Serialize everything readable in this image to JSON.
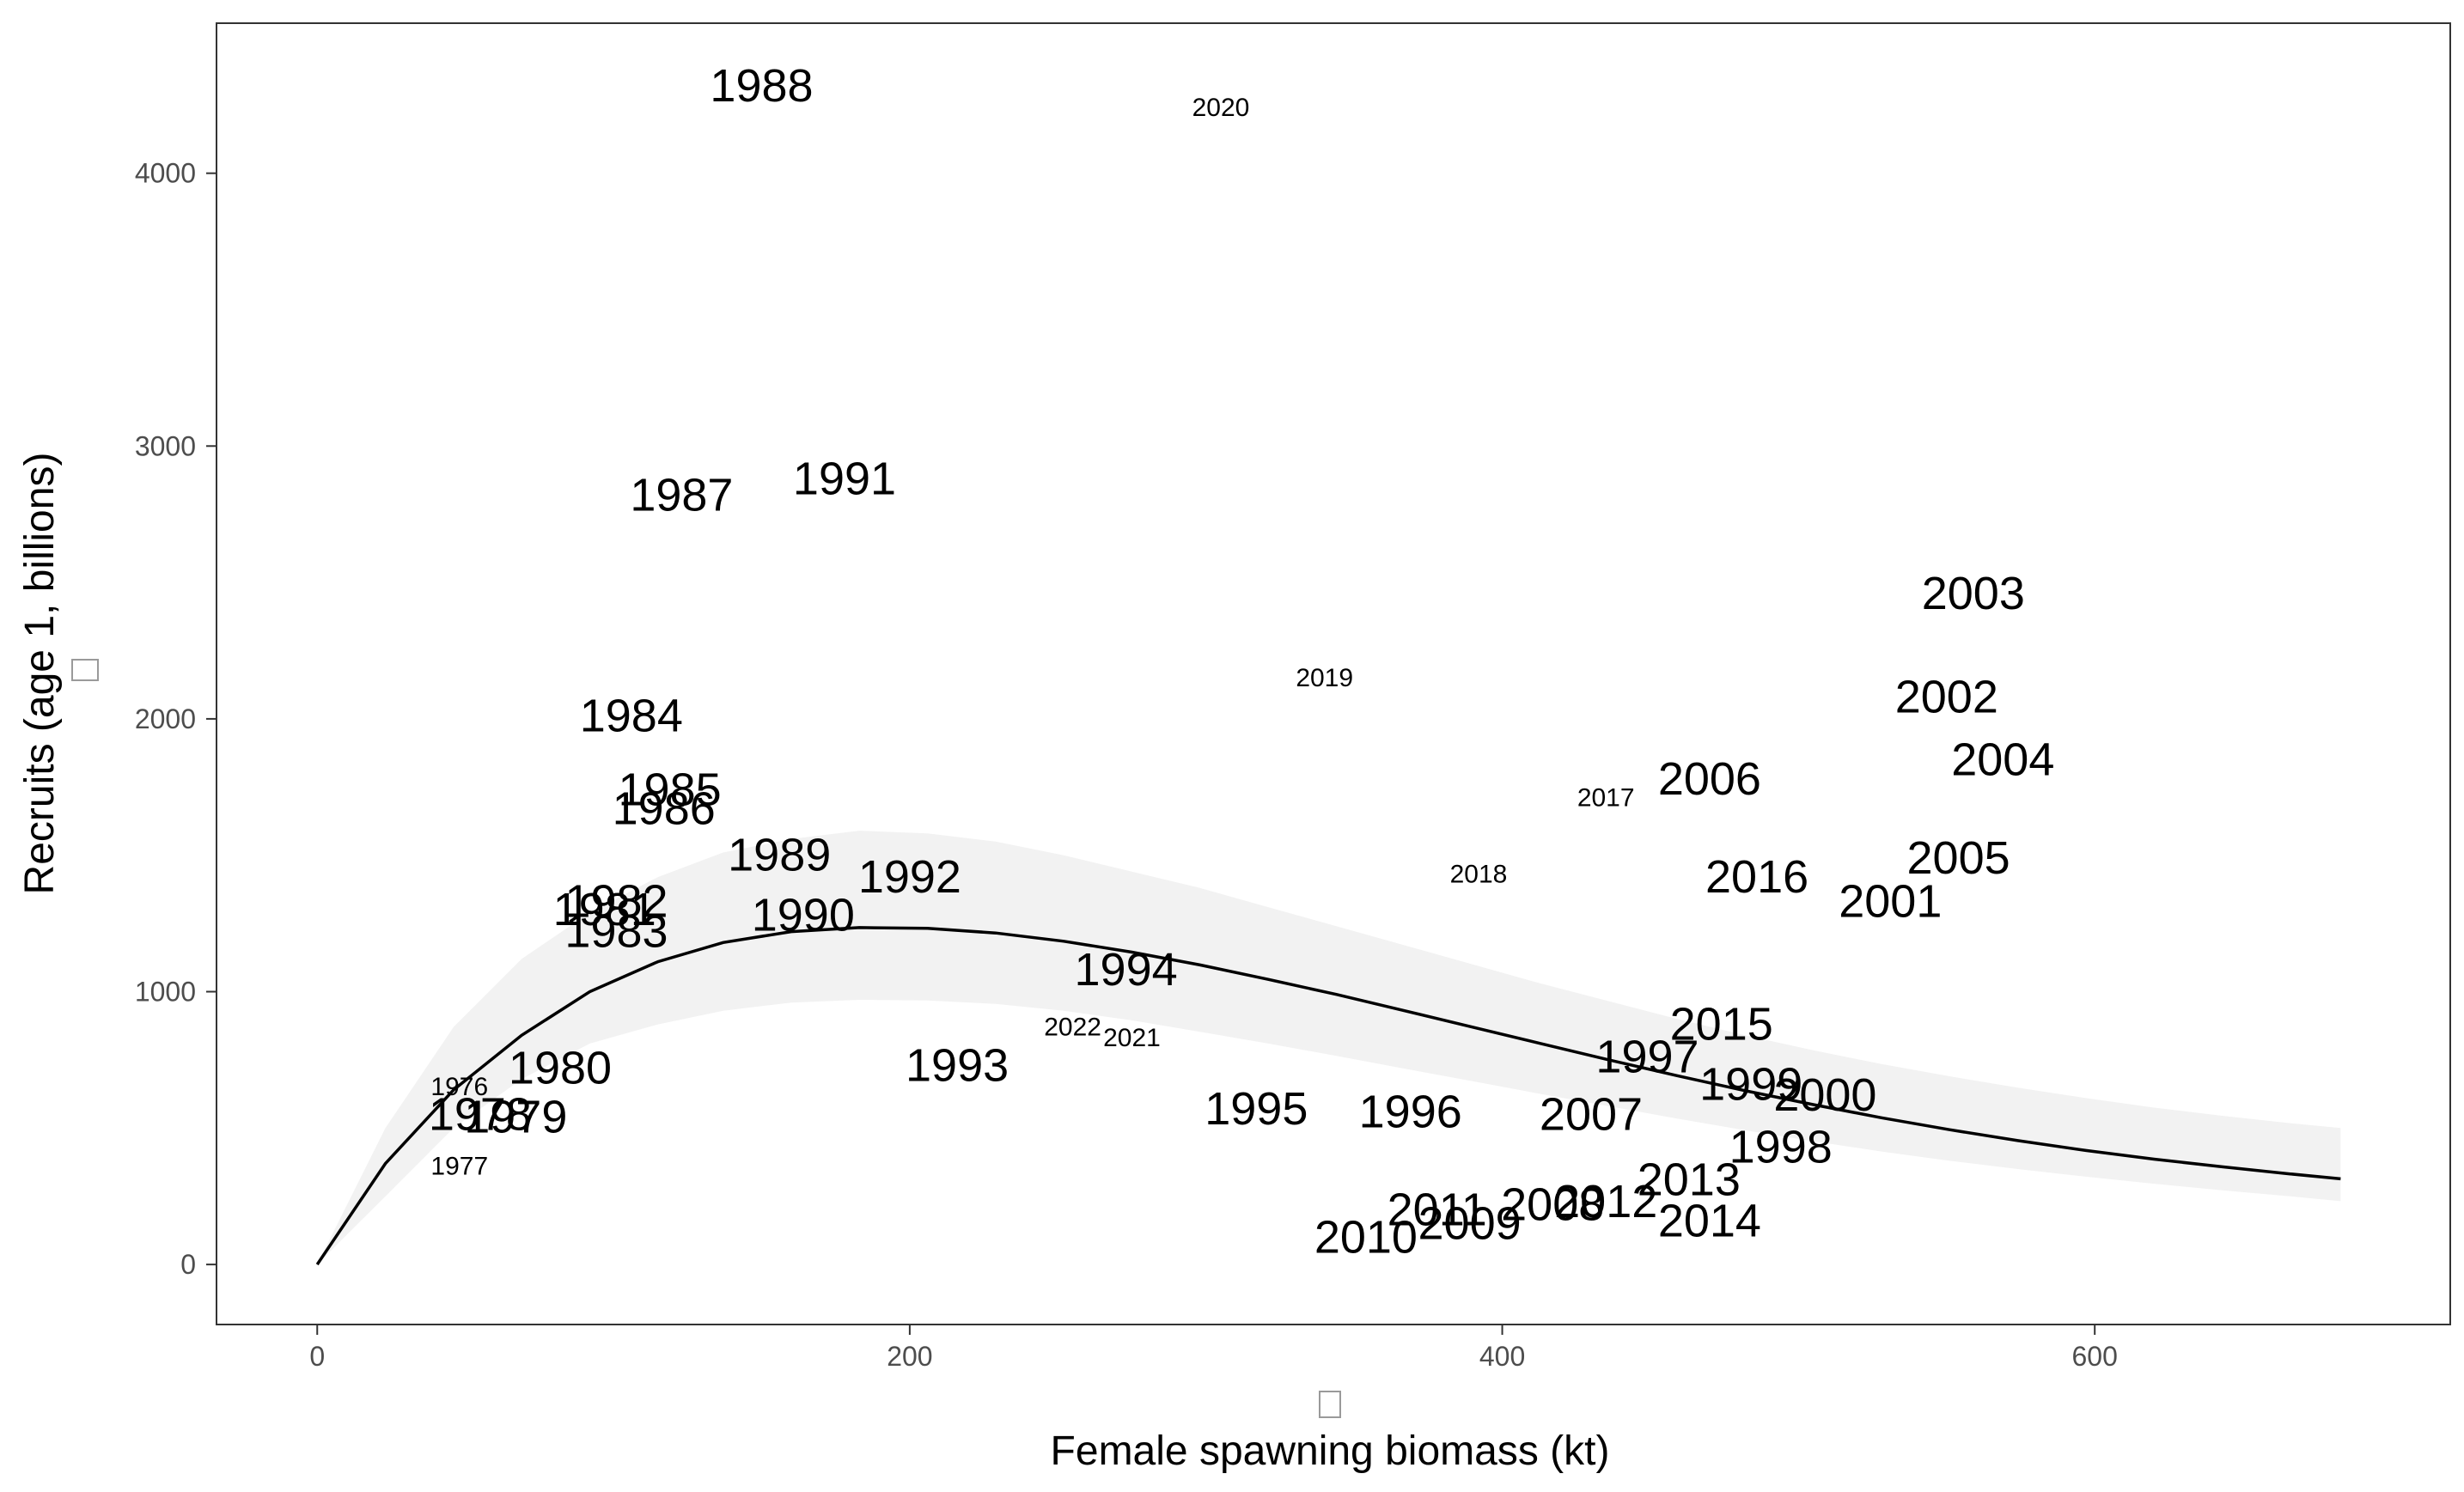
{
  "chart_data": {
    "type": "scatter",
    "xlabel": "Female spawning biomass (kt)",
    "ylabel": "Recruits (age 1, billions)",
    "xlim": [
      -34,
      720
    ],
    "ylim": [
      -220,
      4550
    ],
    "x_ticks": [
      0,
      200,
      400,
      600
    ],
    "y_ticks": [
      0,
      1000,
      2000,
      3000,
      4000
    ],
    "grid": false,
    "legend": "none",
    "colors": {
      "curve": "#000000",
      "band": "#f2f2f2",
      "panel_border": "#333333",
      "tick_text": "#4d4d4d",
      "text": "#000000"
    },
    "points": [
      {
        "label": "1976",
        "x": 48,
        "y": 650,
        "size": "small"
      },
      {
        "label": "1977",
        "x": 48,
        "y": 360,
        "size": "small"
      },
      {
        "label": "1978",
        "x": 55,
        "y": 550,
        "size": "large"
      },
      {
        "label": "1979",
        "x": 67,
        "y": 540,
        "size": "large"
      },
      {
        "label": "1980",
        "x": 82,
        "y": 720,
        "size": "large"
      },
      {
        "label": "1981",
        "x": 97,
        "y": 1300,
        "size": "large"
      },
      {
        "label": "1982",
        "x": 101,
        "y": 1330,
        "size": "large"
      },
      {
        "label": "1983",
        "x": 101,
        "y": 1220,
        "size": "large"
      },
      {
        "label": "1984",
        "x": 106,
        "y": 2010,
        "size": "large"
      },
      {
        "label": "1985",
        "x": 119,
        "y": 1740,
        "size": "large"
      },
      {
        "label": "1986",
        "x": 117,
        "y": 1670,
        "size": "large"
      },
      {
        "label": "1987",
        "x": 123,
        "y": 2820,
        "size": "large"
      },
      {
        "label": "1988",
        "x": 150,
        "y": 4320,
        "size": "large"
      },
      {
        "label": "1989",
        "x": 156,
        "y": 1500,
        "size": "large"
      },
      {
        "label": "1990",
        "x": 164,
        "y": 1280,
        "size": "large"
      },
      {
        "label": "1991",
        "x": 178,
        "y": 2880,
        "size": "large"
      },
      {
        "label": "1992",
        "x": 200,
        "y": 1420,
        "size": "large"
      },
      {
        "label": "1993",
        "x": 216,
        "y": 730,
        "size": "large"
      },
      {
        "label": "1994",
        "x": 273,
        "y": 1080,
        "size": "large"
      },
      {
        "label": "1995",
        "x": 317,
        "y": 570,
        "size": "large"
      },
      {
        "label": "1996",
        "x": 369,
        "y": 560,
        "size": "large"
      },
      {
        "label": "1997",
        "x": 449,
        "y": 760,
        "size": "large"
      },
      {
        "label": "1998",
        "x": 494,
        "y": 430,
        "size": "large"
      },
      {
        "label": "1999",
        "x": 484,
        "y": 660,
        "size": "large"
      },
      {
        "label": "2000",
        "x": 509,
        "y": 620,
        "size": "large"
      },
      {
        "label": "2001",
        "x": 531,
        "y": 1330,
        "size": "large"
      },
      {
        "label": "2002",
        "x": 550,
        "y": 2080,
        "size": "large"
      },
      {
        "label": "2003",
        "x": 559,
        "y": 2460,
        "size": "large"
      },
      {
        "label": "2004",
        "x": 569,
        "y": 1850,
        "size": "large"
      },
      {
        "label": "2005",
        "x": 554,
        "y": 1490,
        "size": "large"
      },
      {
        "label": "2006",
        "x": 470,
        "y": 1780,
        "size": "large"
      },
      {
        "label": "2007",
        "x": 430,
        "y": 550,
        "size": "large"
      },
      {
        "label": "2008",
        "x": 417,
        "y": 220,
        "size": "large"
      },
      {
        "label": "2009",
        "x": 389,
        "y": 150,
        "size": "large"
      },
      {
        "label": "2010",
        "x": 354,
        "y": 100,
        "size": "large"
      },
      {
        "label": "2011",
        "x": 378,
        "y": 200,
        "size": "large"
      },
      {
        "label": "2012",
        "x": 435,
        "y": 230,
        "size": "large"
      },
      {
        "label": "2013",
        "x": 463,
        "y": 310,
        "size": "large"
      },
      {
        "label": "2014",
        "x": 470,
        "y": 160,
        "size": "large"
      },
      {
        "label": "2015",
        "x": 474,
        "y": 880,
        "size": "large"
      },
      {
        "label": "2016",
        "x": 486,
        "y": 1420,
        "size": "large"
      },
      {
        "label": "2017",
        "x": 435,
        "y": 1710,
        "size": "small"
      },
      {
        "label": "2018",
        "x": 392,
        "y": 1430,
        "size": "small"
      },
      {
        "label": "2019",
        "x": 340,
        "y": 2150,
        "size": "small"
      },
      {
        "label": "2020",
        "x": 305,
        "y": 4240,
        "size": "small"
      },
      {
        "label": "2021",
        "x": 275,
        "y": 830,
        "size": "small"
      },
      {
        "label": "2022",
        "x": 255,
        "y": 870,
        "size": "small"
      }
    ],
    "fit_curve": {
      "x": [
        0,
        23,
        46,
        69,
        92,
        115,
        137,
        160,
        183,
        206,
        229,
        252,
        275,
        298,
        321,
        344,
        367,
        390,
        413,
        436,
        459,
        482,
        505,
        528,
        551,
        574,
        597,
        620,
        643,
        666,
        683
      ],
      "y": [
        0,
        370,
        640,
        840,
        1000,
        1110,
        1180,
        1220,
        1235,
        1232,
        1215,
        1185,
        1145,
        1098,
        1045,
        990,
        930,
        870,
        810,
        750,
        692,
        637,
        586,
        538,
        494,
        454,
        418,
        386,
        358,
        332,
        314
      ],
      "lower": [
        0,
        250,
        500,
        680,
        810,
        880,
        930,
        960,
        970,
        968,
        955,
        930,
        895,
        853,
        810,
        765,
        718,
        672,
        625,
        580,
        535,
        492,
        452,
        414,
        380,
        350,
        322,
        296,
        272,
        250,
        232
      ],
      "upper": [
        0,
        500,
        870,
        1120,
        1290,
        1420,
        1510,
        1560,
        1590,
        1580,
        1550,
        1500,
        1440,
        1380,
        1310,
        1240,
        1170,
        1100,
        1030,
        965,
        900,
        840,
        785,
        735,
        690,
        648,
        610,
        575,
        545,
        518,
        500
      ]
    }
  }
}
